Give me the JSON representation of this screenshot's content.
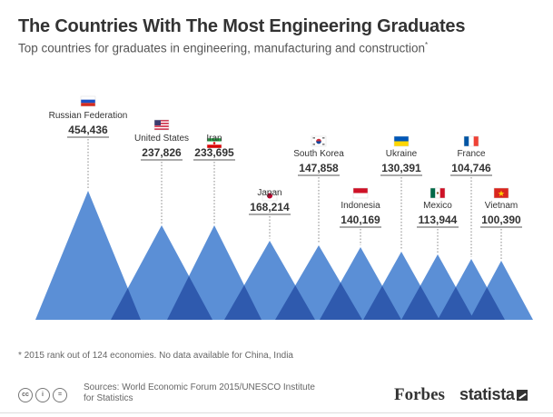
{
  "header": {
    "title": "The Countries With The Most Engineering Graduates",
    "subtitle": "Top countries for graduates in engineering, manufacturing and construction",
    "subtitle_marker": "*"
  },
  "chart_data": {
    "type": "bar",
    "style": "triangles",
    "categories": [
      "Russian Federation",
      "United States",
      "Iran",
      "Japan",
      "South Korea",
      "Indonesia",
      "Ukraine",
      "Mexico",
      "France",
      "Vietnam"
    ],
    "values": [
      454436,
      237826,
      233695,
      168214,
      147858,
      140169,
      130391,
      113944,
      104746,
      100390
    ],
    "value_labels": [
      "454,436",
      "237,826",
      "233,695",
      "168,214",
      "147,858",
      "140,169",
      "130,391",
      "113,944",
      "104,746",
      "100,390"
    ],
    "flags": [
      "russia-flag",
      "usa-flag",
      "iran-flag",
      "japan-flag",
      "south-korea-flag",
      "indonesia-flag",
      "ukraine-flag",
      "mexico-flag",
      "france-flag",
      "vietnam-flag"
    ],
    "colors": {
      "triangle": "#5b8fd6",
      "overlap": "#2f5aae",
      "leader": "#888888"
    }
  },
  "footer": {
    "footnote": "* 2015 rank out of 124 economies. No data available for China, India",
    "sources": "Sources: World Economic Forum 2015/UNESCO Institute for Statistics",
    "cc_icons": [
      "cc",
      "i",
      "="
    ],
    "forbes_logo": "Forbes",
    "statista_logo": "statista"
  }
}
